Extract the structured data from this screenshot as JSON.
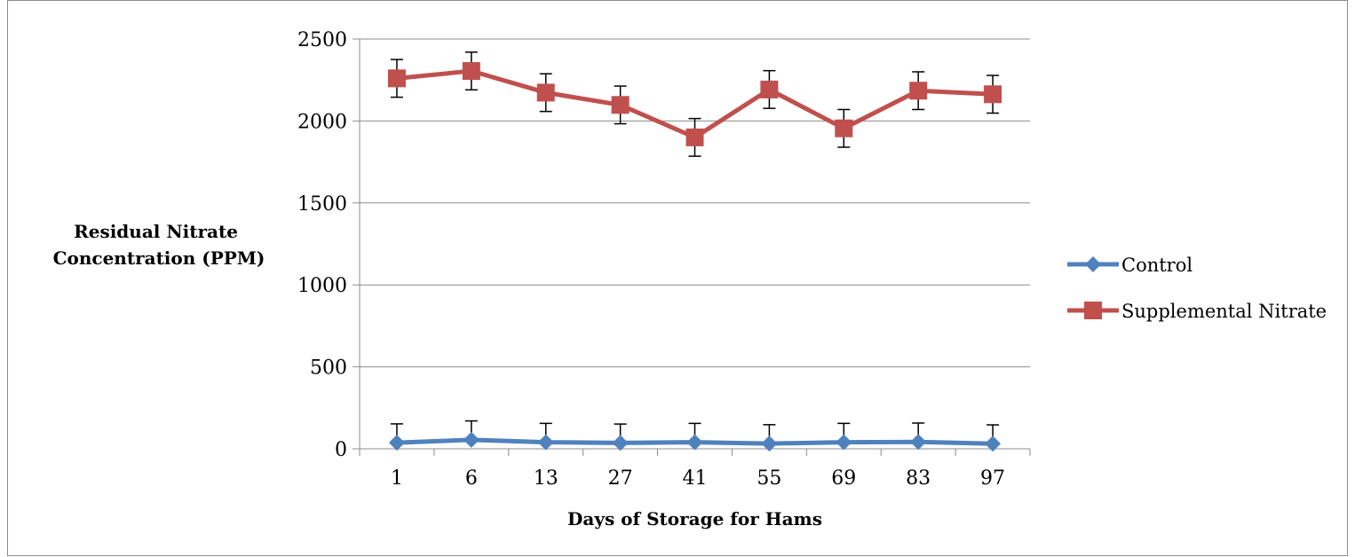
{
  "chart_data": {
    "type": "line",
    "title": "",
    "xlabel": "Days of Storage for Hams",
    "ylabel_lines": [
      "Residual Nitrate",
      "Concentration (PPM)"
    ],
    "categories": [
      "1",
      "6",
      "13",
      "27",
      "41",
      "55",
      "69",
      "83",
      "97"
    ],
    "ylim": [
      0,
      2500
    ],
    "yticks": [
      0,
      500,
      1000,
      1500,
      2000,
      2500
    ],
    "grid": true,
    "legend_position": "right",
    "series": [
      {
        "name": "Control",
        "color": "#4f81bd",
        "marker": "diamond",
        "values": [
          37,
          55,
          40,
          36,
          40,
          32,
          40,
          42,
          31
        ],
        "error_plus": 115
      },
      {
        "name": "Supplemental Nitrate",
        "color": "#c0504d",
        "marker": "square",
        "values": [
          2260,
          2305,
          2173,
          2098,
          1900,
          2192,
          1955,
          2185,
          2163
        ],
        "error_plus": 115,
        "error_minus": 115
      }
    ]
  }
}
